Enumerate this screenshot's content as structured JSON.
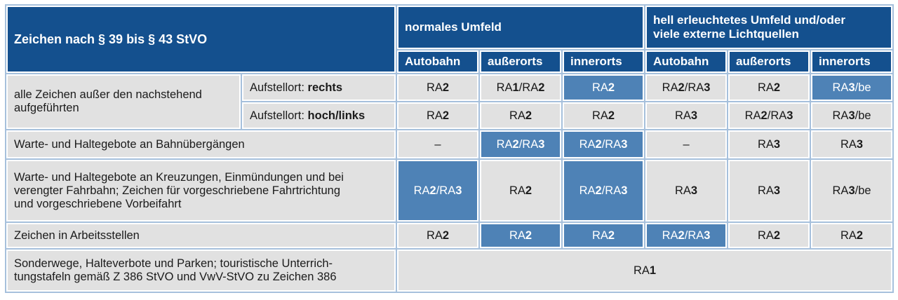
{
  "table": {
    "header": {
      "title": "Zeichen nach § 39 bis § 43 StVO",
      "group_normal": "normales Umfeld",
      "group_bright": "hell erleuchtetes Umfeld und/oder\nviele externe Lichtquellen",
      "columns": [
        "Autobahn",
        "außerorts",
        "innerorts",
        "Autobahn",
        "außerorts",
        "innerorts"
      ]
    },
    "rows": [
      {
        "label": "alle Zeichen außer den nachstehend\naufgeführten",
        "aufstellort_prefix": "Aufstellort: ",
        "aufstellort_bold": "rechts",
        "cells": [
          {
            "text": "RA2",
            "hl": false
          },
          {
            "text": "RA1/RA2",
            "hl": false
          },
          {
            "text": "RA2",
            "hl": true
          },
          {
            "text": "RA2/RA3",
            "hl": false
          },
          {
            "text": "RA2",
            "hl": false
          },
          {
            "text": "RA3/be",
            "hl": true
          }
        ]
      },
      {
        "aufstellort_prefix": "Aufstellort: ",
        "aufstellort_bold": "hoch/links",
        "cells": [
          {
            "text": "RA2",
            "hl": false
          },
          {
            "text": "RA2",
            "hl": false
          },
          {
            "text": "RA2",
            "hl": false
          },
          {
            "text": "RA3",
            "hl": false
          },
          {
            "text": "RA2/RA3",
            "hl": false
          },
          {
            "text": "RA3/be",
            "hl": false
          }
        ]
      },
      {
        "label": "Warte- und Haltegebote an Bahnübergängen",
        "cells": [
          {
            "text": "–",
            "hl": false
          },
          {
            "text": "RA2/RA3",
            "hl": true
          },
          {
            "text": "RA2/RA3",
            "hl": true
          },
          {
            "text": "–",
            "hl": false
          },
          {
            "text": "RA3",
            "hl": false
          },
          {
            "text": "RA3",
            "hl": false
          }
        ]
      },
      {
        "label": "Warte- und Haltegebote an Kreuzungen, Einmündungen und bei\nverengter Fahrbahn; Zeichen für vorgeschriebene Fahrtrichtung\nund vorgeschriebene Vorbeifahrt",
        "cells": [
          {
            "text": "RA2/RA3",
            "hl": true
          },
          {
            "text": "RA2",
            "hl": false
          },
          {
            "text": "RA2/RA3",
            "hl": true
          },
          {
            "text": "RA3",
            "hl": false
          },
          {
            "text": "RA3",
            "hl": false
          },
          {
            "text": "RA3/be",
            "hl": false
          }
        ]
      },
      {
        "label": "Zeichen in Arbeitsstellen",
        "cells": [
          {
            "text": "RA2",
            "hl": false
          },
          {
            "text": "RA2",
            "hl": true
          },
          {
            "text": "RA2",
            "hl": true
          },
          {
            "text": "RA2/RA3",
            "hl": true
          },
          {
            "text": "RA2",
            "hl": false
          },
          {
            "text": "RA2",
            "hl": false
          }
        ]
      },
      {
        "label": "Sonderwege, Halteverbote und Parken; touristische Unterrich-\ntungstafeln gemäß Z 386 StVO und VwV-StVO zu Zeichen 386",
        "span_cell": {
          "text": "RA1",
          "hl": false
        }
      }
    ],
    "colors": {
      "header_bg": "#14508e",
      "highlight_bg": "#4e82b6",
      "cell_bg": "#e1e1e1",
      "grid": "#a6c0dc"
    }
  }
}
